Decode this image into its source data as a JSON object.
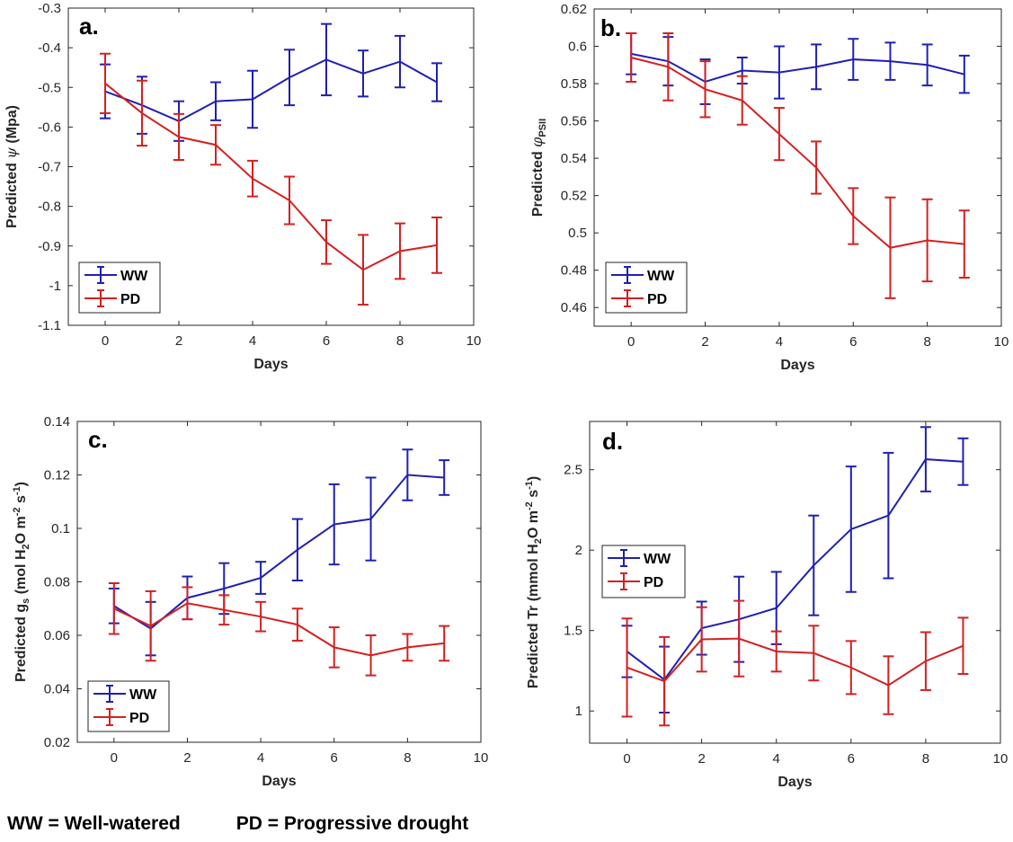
{
  "colors": {
    "ww": "#1f1fb4",
    "pd": "#d42020",
    "axis": "#262626"
  },
  "footnote": {
    "ww": "WW =  Well-watered",
    "pd": "PD = Progressive drought"
  },
  "chart_data": [
    {
      "type": "line",
      "panel_label": "a.",
      "xlabel": "Days",
      "ylabel_parts": [
        "Predicted ",
        "ψ",
        " (Mpa)"
      ],
      "xlim": [
        -1,
        10
      ],
      "ylim": [
        -1.1,
        -0.3
      ],
      "xticks": [
        0,
        2,
        4,
        6,
        8,
        10
      ],
      "yticks": [
        -1.1,
        -1,
        -0.9,
        -0.8,
        -0.7,
        -0.6,
        -0.5,
        -0.4,
        -0.3
      ],
      "ytick_labels": [
        "-1.1",
        "-1",
        "-0.9",
        "-0.8",
        "-0.7",
        "-0.6",
        "-0.5",
        "-0.4",
        "-0.3"
      ],
      "legend_location": "bottom-left",
      "x": [
        0,
        1,
        2,
        3,
        4,
        5,
        6,
        7,
        8,
        9
      ],
      "series": [
        {
          "name": "WW",
          "color_key": "ww",
          "values": [
            -0.51,
            -0.545,
            -0.585,
            -0.535,
            -0.53,
            -0.475,
            -0.43,
            -0.465,
            -0.435,
            -0.487
          ],
          "err": [
            0.068,
            0.072,
            0.05,
            0.048,
            0.072,
            0.07,
            0.09,
            0.058,
            0.065,
            0.048
          ]
        },
        {
          "name": "PD",
          "color_key": "pd",
          "values": [
            -0.49,
            -0.565,
            -0.625,
            -0.645,
            -0.73,
            -0.785,
            -0.89,
            -0.96,
            -0.913,
            -0.898
          ],
          "err": [
            0.075,
            0.082,
            0.058,
            0.05,
            0.045,
            0.06,
            0.055,
            0.088,
            0.07,
            0.07
          ]
        }
      ]
    },
    {
      "type": "line",
      "panel_label": "b.",
      "xlabel": "Days",
      "ylabel_parts": [
        "Predicted ",
        "φ",
        "PSII"
      ],
      "xlim": [
        -1,
        10
      ],
      "ylim": [
        0.45,
        0.62
      ],
      "xticks": [
        0,
        2,
        4,
        6,
        8,
        10
      ],
      "yticks": [
        0.46,
        0.48,
        0.5,
        0.52,
        0.54,
        0.56,
        0.58,
        0.6,
        0.62
      ],
      "ytick_labels": [
        "0.46",
        "0.48",
        "0.5",
        "0.52",
        "0.54",
        "0.56",
        "0.58",
        "0.6",
        "0.62"
      ],
      "legend_location": "bottom-left",
      "x": [
        0,
        1,
        2,
        3,
        4,
        5,
        6,
        7,
        8,
        9
      ],
      "series": [
        {
          "name": "WW",
          "color_key": "ww",
          "values": [
            0.596,
            0.592,
            0.581,
            0.587,
            0.586,
            0.589,
            0.593,
            0.592,
            0.59,
            0.585
          ],
          "err": [
            0.011,
            0.013,
            0.012,
            0.007,
            0.014,
            0.012,
            0.011,
            0.01,
            0.011,
            0.01
          ]
        },
        {
          "name": "PD",
          "color_key": "pd",
          "values": [
            0.594,
            0.589,
            0.577,
            0.571,
            0.553,
            0.535,
            0.509,
            0.492,
            0.496,
            0.494
          ],
          "err": [
            0.013,
            0.018,
            0.015,
            0.013,
            0.014,
            0.014,
            0.015,
            0.027,
            0.022,
            0.018
          ]
        }
      ]
    },
    {
      "type": "line",
      "panel_label": "c.",
      "xlabel": "Days",
      "ylabel_parts": [
        "Predicted g",
        "s",
        " (mol H",
        "2",
        "O m",
        "-2",
        " s",
        "-1",
        ")"
      ],
      "xlim": [
        -1,
        10
      ],
      "ylim": [
        0.02,
        0.14
      ],
      "xticks": [
        0,
        2,
        4,
        6,
        8,
        10
      ],
      "yticks": [
        0.02,
        0.04,
        0.06,
        0.08,
        0.1,
        0.12,
        0.14
      ],
      "ytick_labels": [
        "0.02",
        "0.04",
        "0.06",
        "0.08",
        "0.1",
        "0.12",
        "0.14"
      ],
      "legend_location": "bottom-left",
      "x": [
        0,
        1,
        2,
        3,
        4,
        5,
        6,
        7,
        8,
        9
      ],
      "series": [
        {
          "name": "WW",
          "color_key": "ww",
          "values": [
            0.071,
            0.0625,
            0.074,
            0.0775,
            0.0815,
            0.092,
            0.1015,
            0.1035,
            0.12,
            0.119
          ],
          "err": [
            0.0065,
            0.01,
            0.008,
            0.0095,
            0.006,
            0.0115,
            0.015,
            0.0155,
            0.0095,
            0.0065
          ]
        },
        {
          "name": "PD",
          "color_key": "pd",
          "values": [
            0.07,
            0.0635,
            0.072,
            0.0695,
            0.067,
            0.064,
            0.0555,
            0.0525,
            0.0555,
            0.057
          ],
          "err": [
            0.0095,
            0.013,
            0.006,
            0.0055,
            0.0055,
            0.006,
            0.0075,
            0.0075,
            0.005,
            0.0065
          ]
        }
      ]
    },
    {
      "type": "line",
      "panel_label": "d.",
      "xlabel": "Days",
      "ylabel_parts": [
        "Predicted Tr (mmol H",
        "2",
        "O m",
        "-2",
        " s",
        "-1",
        ")"
      ],
      "xlim": [
        -1,
        10
      ],
      "ylim": [
        0.8,
        2.8
      ],
      "xticks": [
        0,
        2,
        4,
        6,
        8,
        10
      ],
      "yticks": [
        1,
        1.5,
        2,
        2.5
      ],
      "ytick_labels": [
        "1",
        "1.5",
        "2",
        "2.5"
      ],
      "legend_location": "upper-left",
      "x": [
        0,
        1,
        2,
        3,
        4,
        5,
        6,
        7,
        8,
        9
      ],
      "series": [
        {
          "name": "WW",
          "color_key": "ww",
          "values": [
            1.37,
            1.195,
            1.515,
            1.57,
            1.64,
            1.905,
            2.13,
            2.215,
            2.565,
            2.55
          ],
          "err": [
            0.16,
            0.205,
            0.165,
            0.265,
            0.225,
            0.31,
            0.39,
            0.39,
            0.2,
            0.145
          ]
        },
        {
          "name": "PD",
          "color_key": "pd",
          "values": [
            1.27,
            1.185,
            1.445,
            1.45,
            1.37,
            1.36,
            1.27,
            1.16,
            1.31,
            1.405
          ],
          "err": [
            0.305,
            0.275,
            0.2,
            0.235,
            0.125,
            0.17,
            0.165,
            0.18,
            0.18,
            0.175
          ]
        }
      ]
    }
  ]
}
